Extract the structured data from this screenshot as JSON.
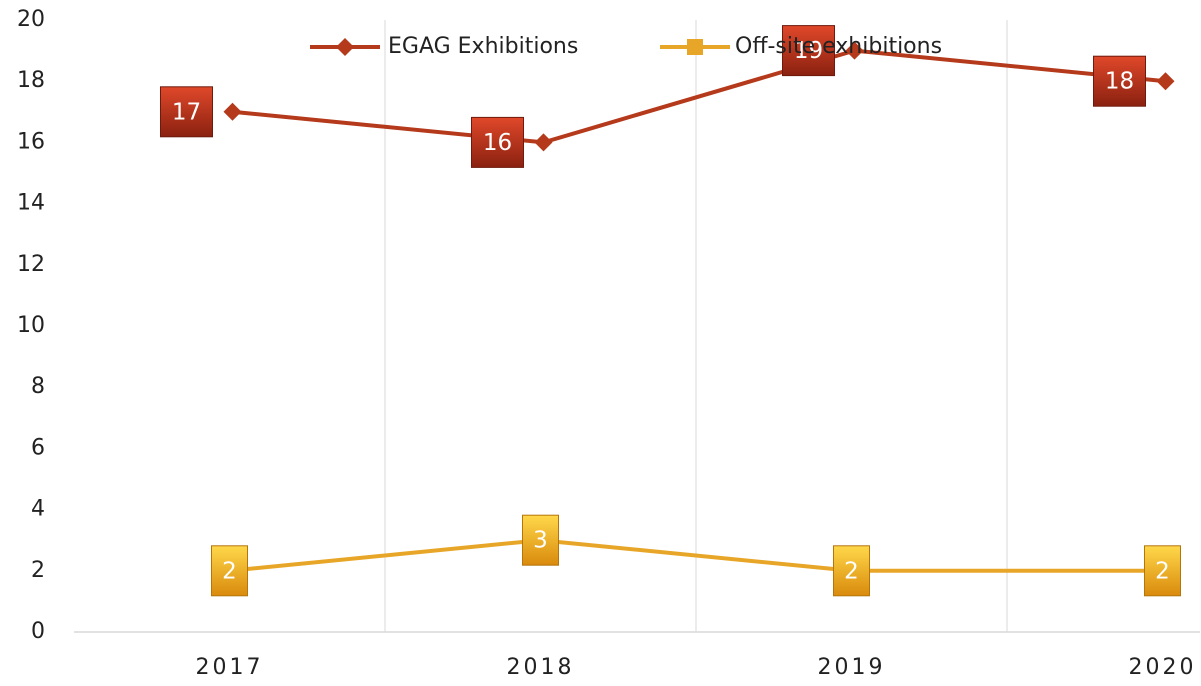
{
  "chart_data": {
    "type": "line",
    "categories": [
      "2017",
      "2018",
      "2019",
      "2020"
    ],
    "series": [
      {
        "name": "EGAG Exhibitions",
        "color": "#b5391b",
        "marker": "diamond",
        "values": [
          17,
          16,
          19,
          18
        ]
      },
      {
        "name": "Off-site exhibitions",
        "color": "#e8a628",
        "marker": "square",
        "values": [
          2,
          3,
          2,
          2
        ]
      }
    ],
    "ylim": [
      0,
      20
    ],
    "yticks": [
      0,
      2,
      4,
      6,
      8,
      10,
      12,
      14,
      16,
      18,
      20
    ],
    "grid": true,
    "legend": "top"
  }
}
